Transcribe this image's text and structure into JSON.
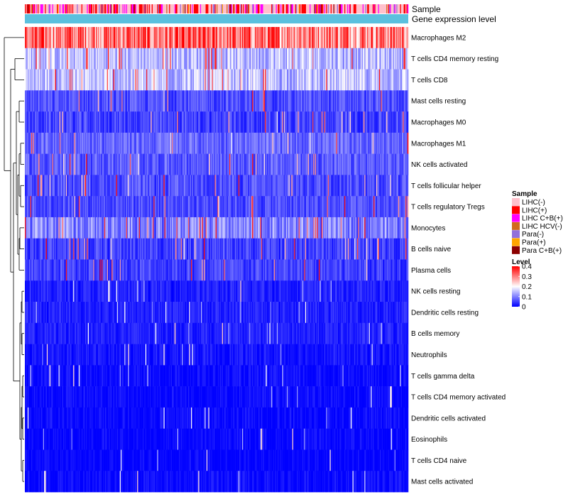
{
  "chart_data": {
    "type": "heatmap",
    "title": "",
    "annotation_tracks": [
      {
        "key": "sample",
        "label": "Sample"
      },
      {
        "key": "level",
        "label": "Gene expression level"
      }
    ],
    "rows": [
      {
        "name": "Macrophages M2",
        "mean": 0.3
      },
      {
        "name": "T cells CD4 memory resting",
        "mean": 0.15
      },
      {
        "name": "T cells CD8",
        "mean": 0.15
      },
      {
        "name": "Mast cells resting",
        "mean": 0.06
      },
      {
        "name": "Macrophages M0",
        "mean": 0.05
      },
      {
        "name": "Macrophages M1",
        "mean": 0.08
      },
      {
        "name": "NK cells activated",
        "mean": 0.07
      },
      {
        "name": "T cells follicular helper",
        "mean": 0.06
      },
      {
        "name": "T cells regulatory  Tregs",
        "mean": 0.06
      },
      {
        "name": "Monocytes",
        "mean": 0.1
      },
      {
        "name": "B cells naive",
        "mean": 0.05
      },
      {
        "name": "Plasma cells",
        "mean": 0.05
      },
      {
        "name": "NK cells resting",
        "mean": 0.03
      },
      {
        "name": "Dendritic cells resting",
        "mean": 0.03
      },
      {
        "name": "B cells memory",
        "mean": 0.03
      },
      {
        "name": "Neutrophils",
        "mean": 0.02
      },
      {
        "name": "T cells gamma delta",
        "mean": 0.01
      },
      {
        "name": "T cells CD4 memory activated",
        "mean": 0.01
      },
      {
        "name": "Dendritic cells activated",
        "mean": 0.01
      },
      {
        "name": "Eosinophils",
        "mean": 0.005
      },
      {
        "name": "T cells CD4 naive",
        "mean": 0.005
      },
      {
        "name": "Mast cells activated",
        "mean": 0.01
      }
    ],
    "n_columns": 420,
    "color_scale": {
      "min": 0,
      "max": 0.4,
      "stops": [
        {
          "value": 0,
          "color": "#0000ff"
        },
        {
          "value": 0.2,
          "color": "#ffffff"
        },
        {
          "value": 0.4,
          "color": "#ff0000"
        }
      ],
      "ticks": [
        "0.4",
        "0.3",
        "0.2",
        "0.1",
        "0"
      ]
    },
    "legend": {
      "sample_title": "Sample",
      "sample_entries": [
        {
          "label": "LIHC(-)",
          "color": "#ffc0cb"
        },
        {
          "label": "LIHC(+)",
          "color": "#ff0000"
        },
        {
          "label": "LIHC C+B(+)",
          "color": "#ff00ff"
        },
        {
          "label": "LIHC HCV(-)",
          "color": "#d2691e"
        },
        {
          "label": "Para(-)",
          "color": "#9370db"
        },
        {
          "label": "Para(+)",
          "color": "#ffa500"
        },
        {
          "label": "Para C+B(+)",
          "color": "#8b0000"
        }
      ],
      "sample_weights": [
        0.5,
        0.25,
        0.13,
        0.02,
        0.07,
        0.01,
        0.02
      ],
      "level_title": "Level",
      "level_color": "#5bc0de",
      "position": "right"
    },
    "dendrogram": "left"
  }
}
